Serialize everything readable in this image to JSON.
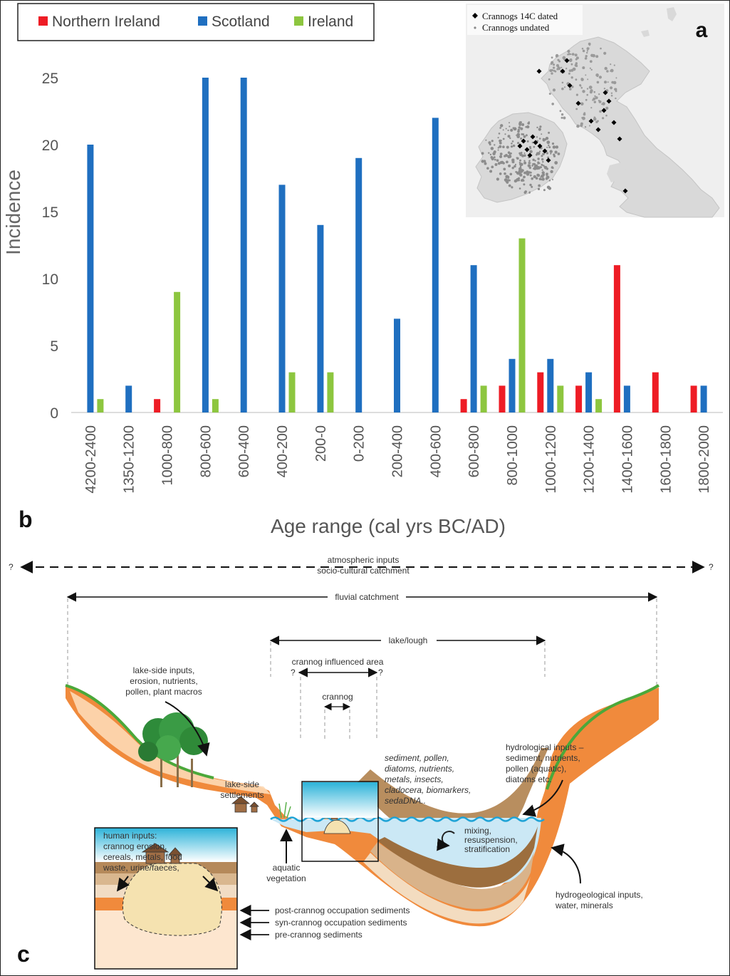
{
  "panel_labels": {
    "a": "a",
    "b": "b",
    "c": "c"
  },
  "chart_data": {
    "type": "bar",
    "categories": [
      "4200-2400",
      "1350-1200",
      "1000-800",
      "800-600",
      "600-400",
      "400-200",
      "200-0",
      "0-200",
      "200-400",
      "400-600",
      "600-800",
      "800-1000",
      "1000-1200",
      "1200-1400",
      "1400-1600",
      "1600-1800",
      "1800-2000"
    ],
    "series": [
      {
        "name": "Northern Ireland",
        "color": "#ee1c25",
        "values": [
          0,
          0,
          1,
          0,
          0,
          0,
          0,
          0,
          0,
          0,
          1,
          2,
          3,
          2,
          11,
          3,
          2
        ]
      },
      {
        "name": "Scotland",
        "color": "#1f6fc0",
        "values": [
          20,
          2,
          0,
          25,
          25,
          17,
          14,
          19,
          7,
          22,
          11,
          4,
          4,
          3,
          2,
          0,
          2
        ]
      },
      {
        "name": "Ireland",
        "color": "#8dc63f",
        "values": [
          1,
          0,
          9,
          1,
          0,
          3,
          3,
          0,
          0,
          0,
          2,
          13,
          2,
          1,
          0,
          0,
          0
        ]
      }
    ],
    "yticks": [
      0,
      5,
      10,
      15,
      20,
      25
    ],
    "ylim": [
      0,
      27
    ],
    "xlabel": "Age range (cal yrs BC/AD)",
    "ylabel": "Incidence",
    "legend_position": "top-left",
    "grid": false
  },
  "map_inset": {
    "legend": [
      {
        "label": "Crannogs 14C dated",
        "symbol": "diamond-icon",
        "color": "#000000"
      },
      {
        "label": "Crannogs undated",
        "symbol": "dot-icon",
        "color": "#888888"
      }
    ]
  },
  "diagram": {
    "labels": {
      "atmospheric_1": "atmospheric inputs",
      "atmospheric_2": "socio-cultural catchment",
      "q": "?",
      "fluvial": "fluvial catchment",
      "lake": "lake/lough",
      "influenced": "crannog influenced area",
      "crannog": "crannog",
      "lakeside_1": "lake-side inputs,",
      "lakeside_2": "erosion, nutrients,",
      "lakeside_3": "pollen, plant macros",
      "settlements_1": "lake-side",
      "settlements_2": "settlements",
      "sediment_1": "sediment, pollen,",
      "sediment_2": "diatoms, nutrients,",
      "sediment_3": "metals, insects,",
      "sediment_4": "cladocera, biomarkers,",
      "sediment_5": "sedaDNA..",
      "hydro_1": "hydrological inputs –",
      "hydro_2": "sediment, nutrients,",
      "hydro_3": "pollen (aquatic),",
      "hydro_4": "diatoms etc.",
      "mixing_1": "mixing,",
      "mixing_2": "resuspension,",
      "mixing_3": "stratification",
      "aquatic_1": "aquatic",
      "aquatic_2": "vegetation",
      "human_1": "human inputs:",
      "human_2": "crannog erosion,",
      "human_3": "cereals, metals, food",
      "human_4": "waste, urine/faeces,",
      "post": "post-crannog occupation sediments",
      "syn": "syn-crannog occupation sediments",
      "pre": "pre-crannog sediments",
      "hydrogeo_1": "hydrogeological inputs,",
      "hydrogeo_2": "water, minerals"
    }
  }
}
